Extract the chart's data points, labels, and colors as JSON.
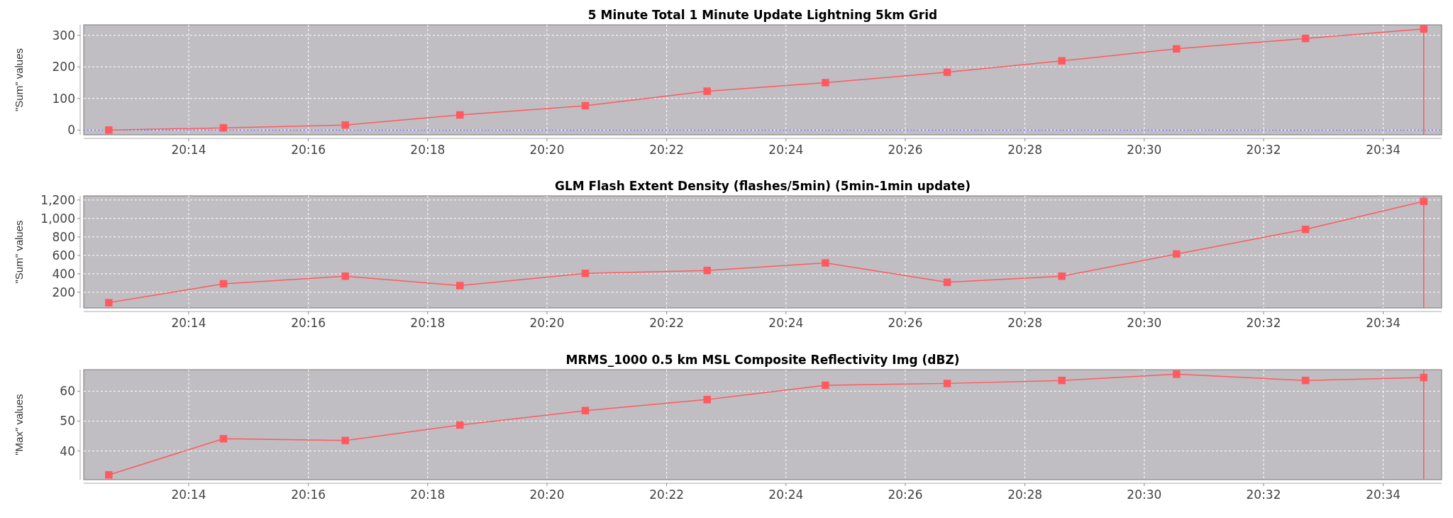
{
  "chart_data": [
    {
      "type": "line",
      "title": "5 Minute Total 1 Minute Update Lightning 5km Grid",
      "ylabel": "\"Sum\" values",
      "x": [
        20.211,
        20.243,
        20.277,
        20.309,
        20.344,
        20.378,
        20.411,
        20.445,
        20.477,
        20.509,
        20.545,
        20.578
      ],
      "series": [
        {
          "color": "#ff5a5f",
          "values": [
            0,
            7,
            16,
            48,
            77,
            123,
            150,
            183,
            219,
            257,
            290,
            320
          ]
        }
      ],
      "xlim": [
        20.204,
        20.583
      ],
      "xticks": [
        {
          "value": 20.2333,
          "label": "20:14"
        },
        {
          "value": 20.2667,
          "label": "20:16"
        },
        {
          "value": 20.3,
          "label": "20:18"
        },
        {
          "value": 20.3333,
          "label": "20:20"
        },
        {
          "value": 20.3667,
          "label": "20:22"
        },
        {
          "value": 20.4,
          "label": "20:24"
        },
        {
          "value": 20.4333,
          "label": "20:26"
        },
        {
          "value": 20.4667,
          "label": "20:28"
        },
        {
          "value": 20.5,
          "label": "20:30"
        },
        {
          "value": 20.5333,
          "label": "20:32"
        },
        {
          "value": 20.5667,
          "label": "20:34"
        }
      ],
      "ylim": [
        -15,
        333
      ],
      "yticks": [
        0,
        100,
        200,
        300
      ],
      "grid": true,
      "marker": "square",
      "line_style": "solid",
      "ref_lines": [
        {
          "axis": "y",
          "value": 0,
          "color": "#7070ff",
          "line_style": "dotted"
        },
        {
          "axis": "x",
          "value": 20.578,
          "color": "#ff5a5f",
          "line_style": "solid"
        }
      ]
    },
    {
      "type": "line",
      "title": "GLM Flash Extent Density (flashes/5min) (5min-1min update)",
      "ylabel": "\"Sum\" values",
      "x": [
        20.211,
        20.243,
        20.277,
        20.309,
        20.344,
        20.378,
        20.411,
        20.445,
        20.477,
        20.509,
        20.545,
        20.578
      ],
      "series": [
        {
          "color": "#ff5a5f",
          "values": [
            87,
            292,
            374,
            272,
            405,
            436,
            518,
            308,
            374,
            615,
            882,
            1185
          ]
        }
      ],
      "xlim": [
        20.204,
        20.583
      ],
      "xticks": [
        {
          "value": 20.2333,
          "label": "20:14"
        },
        {
          "value": 20.2667,
          "label": "20:16"
        },
        {
          "value": 20.3,
          "label": "20:18"
        },
        {
          "value": 20.3333,
          "label": "20:20"
        },
        {
          "value": 20.3667,
          "label": "20:22"
        },
        {
          "value": 20.4,
          "label": "20:24"
        },
        {
          "value": 20.4333,
          "label": "20:26"
        },
        {
          "value": 20.4667,
          "label": "20:28"
        },
        {
          "value": 20.5,
          "label": "20:30"
        },
        {
          "value": 20.5333,
          "label": "20:32"
        },
        {
          "value": 20.5667,
          "label": "20:34"
        }
      ],
      "ylim": [
        30,
        1245
      ],
      "yticks": [
        {
          "value": 200,
          "label": "200"
        },
        {
          "value": 400,
          "label": "400"
        },
        {
          "value": 600,
          "label": "600"
        },
        {
          "value": 800,
          "label": "800"
        },
        {
          "value": 1000,
          "label": "1,000"
        },
        {
          "value": 1200,
          "label": "1,200"
        }
      ],
      "grid": true,
      "marker": "square",
      "line_style": "solid",
      "ref_lines": [
        {
          "axis": "x",
          "value": 20.578,
          "color": "#ff5a5f",
          "line_style": "solid"
        }
      ]
    },
    {
      "type": "line",
      "title": "MRMS_1000 0.5 km MSL Composite Reflectivity Img (dBZ)",
      "ylabel": "\"Max\" values",
      "x": [
        20.211,
        20.243,
        20.277,
        20.309,
        20.344,
        20.378,
        20.411,
        20.445,
        20.477,
        20.509,
        20.545,
        20.578
      ],
      "series": [
        {
          "color": "#ff5a5f",
          "values": [
            32.0,
            44.1,
            43.5,
            48.7,
            53.5,
            57.2,
            62.0,
            62.6,
            63.6,
            65.7,
            63.6,
            64.6
          ]
        }
      ],
      "xlim": [
        20.204,
        20.583
      ],
      "xticks": [
        {
          "value": 20.2333,
          "label": "20:14"
        },
        {
          "value": 20.2667,
          "label": "20:16"
        },
        {
          "value": 20.3,
          "label": "20:18"
        },
        {
          "value": 20.3333,
          "label": "20:20"
        },
        {
          "value": 20.3667,
          "label": "20:22"
        },
        {
          "value": 20.4,
          "label": "20:24"
        },
        {
          "value": 20.4333,
          "label": "20:26"
        },
        {
          "value": 20.4667,
          "label": "20:28"
        },
        {
          "value": 20.5,
          "label": "20:30"
        },
        {
          "value": 20.5333,
          "label": "20:32"
        },
        {
          "value": 20.5667,
          "label": "20:34"
        }
      ],
      "ylim": [
        30.4,
        67.2
      ],
      "yticks": [
        40,
        50,
        60
      ],
      "grid": true,
      "marker": "square",
      "line_style": "solid",
      "ref_lines": [
        {
          "axis": "x",
          "value": 20.578,
          "color": "#ff5a5f",
          "line_style": "solid"
        }
      ]
    }
  ]
}
